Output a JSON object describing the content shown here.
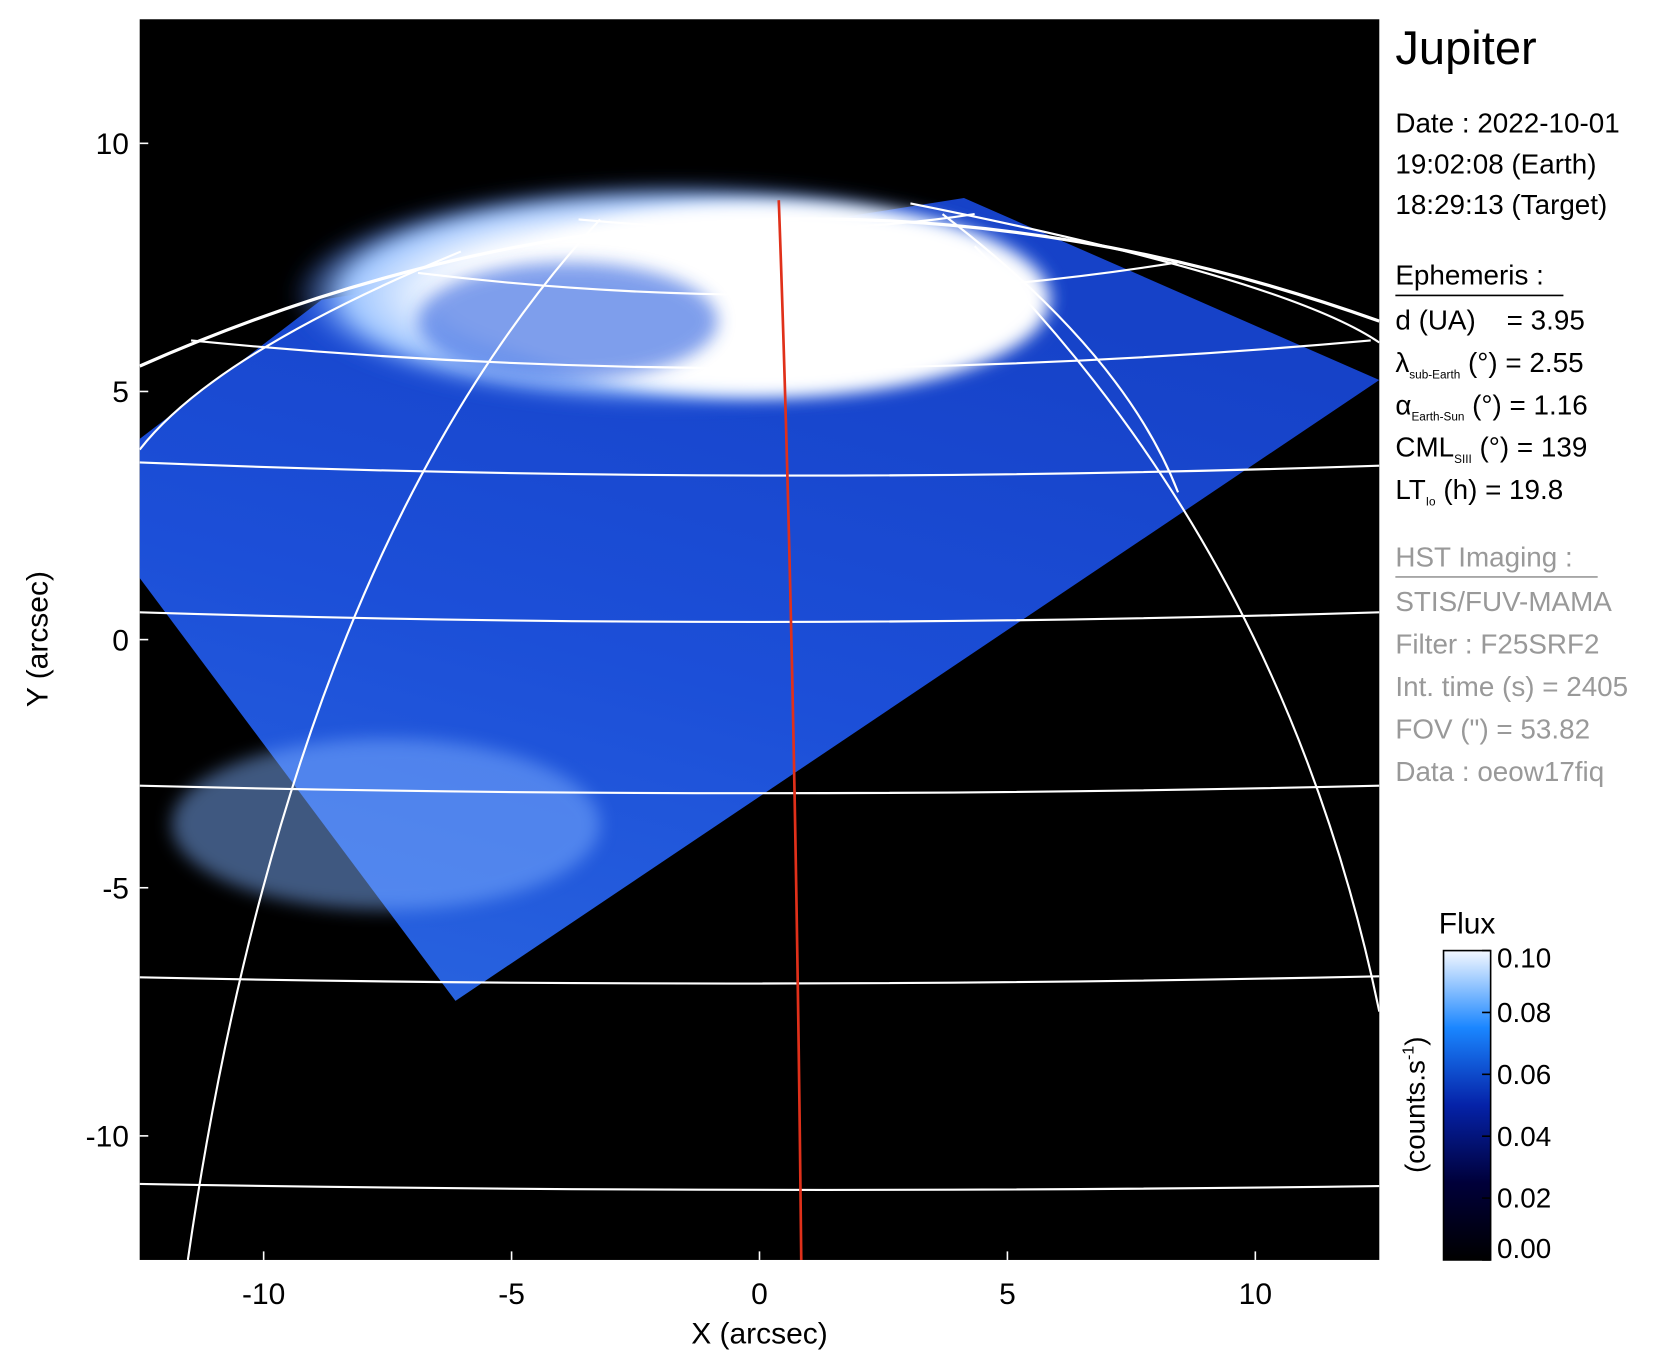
{
  "chart_data": {
    "type": "image",
    "xlabel": "X (arcsec)",
    "ylabel": "Y (arcsec)",
    "xlim": [
      -12.5,
      12.5
    ],
    "ylim": [
      -12.5,
      12.5
    ],
    "xticks": [
      -10,
      -5,
      0,
      5,
      10
    ],
    "yticks": [
      -10,
      -5,
      0,
      5,
      10
    ],
    "colorbar": {
      "title": "Flux",
      "label": "(counts.s",
      "label_sup": "-1",
      "label_end": ")",
      "lim": [
        0,
        0.1
      ],
      "ticks": [
        {
          "value": 0,
          "label": "0.00"
        },
        {
          "value": 0.02,
          "label": "0.02"
        },
        {
          "value": 0.04,
          "label": "0.04"
        },
        {
          "value": 0.06,
          "label": "0.06"
        },
        {
          "value": 0.08,
          "label": "0.08"
        },
        {
          "value": 0.1,
          "label": "0.10"
        }
      ]
    },
    "info": {
      "title": "Jupiter",
      "date_lines": [
        "Date : 2022-10-01",
        "19:02:08 (Earth)",
        "18:29:13 (Target)"
      ],
      "ephemeris_header": "Ephemeris :",
      "ephemeris": [
        {
          "symbol": "d (UA)    = 3.95"
        },
        {
          "symbol": "λ",
          "sub": "sub-Earth",
          "text": " (°) = 2.55"
        },
        {
          "symbol": "α",
          "sub": "Earth-Sun",
          "text": " (°) = 1.16"
        },
        {
          "symbol": "CML",
          "sub": "SIII",
          "text": " (°) = 139"
        },
        {
          "symbol": "LT",
          "sub": "Io",
          "text": " (h) = 19.8"
        }
      ],
      "hst_header": "HST Imaging :",
      "hst_lines": [
        "STIS/FUV-MAMA",
        "Filter : F25SRF2",
        "Int. time (s) = 2405",
        "FOV (\") = 53.82",
        "Data : oeow17fiq"
      ]
    }
  }
}
